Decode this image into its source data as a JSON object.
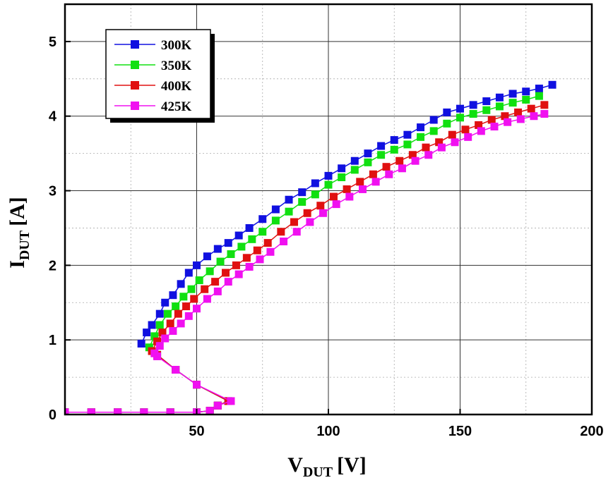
{
  "chart_data": {
    "type": "scatter",
    "xlabel": {
      "main": "V",
      "sub": "DUT",
      "unit": "[V]"
    },
    "ylabel": {
      "main": "I",
      "sub": "DUT",
      "unit": "[A]"
    },
    "xlim": [
      0,
      200
    ],
    "ylim": [
      0,
      5.5
    ],
    "xticks": [
      "50",
      "100",
      "150",
      "200"
    ],
    "xtick_values": [
      50,
      100,
      150,
      200
    ],
    "yticks": [
      "0",
      "1",
      "2",
      "3",
      "4",
      "5"
    ],
    "ytick_values": [
      0,
      1,
      2,
      3,
      4,
      5
    ],
    "grid": true,
    "legend_position": "top-left",
    "series": [
      {
        "name": "300K",
        "color": "#1010e0",
        "points": [
          [
            0,
            0.03
          ],
          [
            10,
            0.03
          ],
          [
            20,
            0.03
          ],
          [
            30,
            0.03
          ],
          [
            40,
            0.03
          ],
          [
            50,
            0.03
          ],
          [
            55,
            0.05
          ],
          [
            58,
            0.12
          ],
          [
            62,
            0.18
          ],
          [
            50,
            0.4
          ],
          [
            42,
            0.6
          ],
          [
            35,
            0.8
          ],
          [
            29,
            0.95
          ],
          [
            31,
            1.1
          ],
          [
            33,
            1.2
          ],
          [
            36,
            1.35
          ],
          [
            38,
            1.5
          ],
          [
            41,
            1.6
          ],
          [
            44,
            1.75
          ],
          [
            47,
            1.9
          ],
          [
            50,
            2.0
          ],
          [
            54,
            2.12
          ],
          [
            58,
            2.22
          ],
          [
            62,
            2.3
          ],
          [
            66,
            2.4
          ],
          [
            70,
            2.5
          ],
          [
            75,
            2.62
          ],
          [
            80,
            2.75
          ],
          [
            85,
            2.88
          ],
          [
            90,
            2.98
          ],
          [
            95,
            3.1
          ],
          [
            100,
            3.2
          ],
          [
            105,
            3.3
          ],
          [
            110,
            3.4
          ],
          [
            115,
            3.5
          ],
          [
            120,
            3.6
          ],
          [
            125,
            3.68
          ],
          [
            130,
            3.75
          ],
          [
            135,
            3.85
          ],
          [
            140,
            3.95
          ],
          [
            145,
            4.05
          ],
          [
            150,
            4.1
          ],
          [
            155,
            4.15
          ],
          [
            160,
            4.2
          ],
          [
            165,
            4.25
          ],
          [
            170,
            4.3
          ],
          [
            175,
            4.33
          ],
          [
            180,
            4.37
          ],
          [
            185,
            4.42
          ]
        ]
      },
      {
        "name": "350K",
        "color": "#10e010",
        "points": [
          [
            0,
            0.03
          ],
          [
            10,
            0.03
          ],
          [
            20,
            0.03
          ],
          [
            30,
            0.03
          ],
          [
            40,
            0.03
          ],
          [
            50,
            0.03
          ],
          [
            55,
            0.05
          ],
          [
            58,
            0.12
          ],
          [
            62,
            0.18
          ],
          [
            50,
            0.4
          ],
          [
            42,
            0.6
          ],
          [
            35,
            0.8
          ],
          [
            32,
            0.9
          ],
          [
            34,
            1.05
          ],
          [
            36,
            1.2
          ],
          [
            39,
            1.35
          ],
          [
            42,
            1.45
          ],
          [
            45,
            1.58
          ],
          [
            48,
            1.68
          ],
          [
            51,
            1.8
          ],
          [
            55,
            1.92
          ],
          [
            59,
            2.05
          ],
          [
            63,
            2.15
          ],
          [
            67,
            2.25
          ],
          [
            71,
            2.35
          ],
          [
            75,
            2.45
          ],
          [
            80,
            2.6
          ],
          [
            85,
            2.72
          ],
          [
            90,
            2.85
          ],
          [
            95,
            2.95
          ],
          [
            100,
            3.08
          ],
          [
            105,
            3.18
          ],
          [
            110,
            3.28
          ],
          [
            115,
            3.38
          ],
          [
            120,
            3.48
          ],
          [
            125,
            3.55
          ],
          [
            130,
            3.62
          ],
          [
            135,
            3.72
          ],
          [
            140,
            3.8
          ],
          [
            145,
            3.9
          ],
          [
            150,
            3.98
          ],
          [
            155,
            4.03
          ],
          [
            160,
            4.08
          ],
          [
            165,
            4.13
          ],
          [
            170,
            4.18
          ],
          [
            175,
            4.22
          ],
          [
            180,
            4.27
          ]
        ]
      },
      {
        "name": "400K",
        "color": "#e01010",
        "points": [
          [
            0,
            0.03
          ],
          [
            10,
            0.03
          ],
          [
            20,
            0.03
          ],
          [
            30,
            0.03
          ],
          [
            40,
            0.03
          ],
          [
            50,
            0.03
          ],
          [
            55,
            0.05
          ],
          [
            58,
            0.12
          ],
          [
            62,
            0.18
          ],
          [
            50,
            0.4
          ],
          [
            42,
            0.6
          ],
          [
            35,
            0.8
          ],
          [
            33,
            0.85
          ],
          [
            35,
            0.98
          ],
          [
            37,
            1.1
          ],
          [
            40,
            1.22
          ],
          [
            43,
            1.35
          ],
          [
            46,
            1.45
          ],
          [
            49,
            1.55
          ],
          [
            53,
            1.68
          ],
          [
            57,
            1.78
          ],
          [
            61,
            1.9
          ],
          [
            65,
            2.0
          ],
          [
            69,
            2.1
          ],
          [
            73,
            2.2
          ],
          [
            77,
            2.3
          ],
          [
            82,
            2.45
          ],
          [
            87,
            2.58
          ],
          [
            92,
            2.7
          ],
          [
            97,
            2.8
          ],
          [
            102,
            2.92
          ],
          [
            107,
            3.02
          ],
          [
            112,
            3.12
          ],
          [
            117,
            3.22
          ],
          [
            122,
            3.32
          ],
          [
            127,
            3.4
          ],
          [
            132,
            3.48
          ],
          [
            137,
            3.58
          ],
          [
            142,
            3.65
          ],
          [
            147,
            3.75
          ],
          [
            152,
            3.82
          ],
          [
            157,
            3.88
          ],
          [
            162,
            3.95
          ],
          [
            167,
            4.0
          ],
          [
            172,
            4.05
          ],
          [
            177,
            4.1
          ],
          [
            182,
            4.15
          ]
        ]
      },
      {
        "name": "425K",
        "color": "#f010f0",
        "points": [
          [
            0,
            0.03
          ],
          [
            10,
            0.03
          ],
          [
            20,
            0.03
          ],
          [
            30,
            0.03
          ],
          [
            40,
            0.03
          ],
          [
            50,
            0.03
          ],
          [
            55,
            0.05
          ],
          [
            58,
            0.12
          ],
          [
            63,
            0.18
          ],
          [
            50,
            0.4
          ],
          [
            42,
            0.6
          ],
          [
            35,
            0.78
          ],
          [
            34,
            0.82
          ],
          [
            36,
            0.92
          ],
          [
            38,
            1.02
          ],
          [
            41,
            1.12
          ],
          [
            44,
            1.22
          ],
          [
            47,
            1.32
          ],
          [
            50,
            1.42
          ],
          [
            54,
            1.55
          ],
          [
            58,
            1.65
          ],
          [
            62,
            1.78
          ],
          [
            66,
            1.88
          ],
          [
            70,
            1.98
          ],
          [
            74,
            2.08
          ],
          [
            78,
            2.18
          ],
          [
            83,
            2.32
          ],
          [
            88,
            2.45
          ],
          [
            93,
            2.58
          ],
          [
            98,
            2.7
          ],
          [
            103,
            2.82
          ],
          [
            108,
            2.92
          ],
          [
            113,
            3.02
          ],
          [
            118,
            3.12
          ],
          [
            123,
            3.22
          ],
          [
            128,
            3.3
          ],
          [
            133,
            3.4
          ],
          [
            138,
            3.48
          ],
          [
            143,
            3.58
          ],
          [
            148,
            3.65
          ],
          [
            153,
            3.72
          ],
          [
            158,
            3.8
          ],
          [
            163,
            3.86
          ],
          [
            168,
            3.92
          ],
          [
            173,
            3.96
          ],
          [
            178,
            4.0
          ],
          [
            182,
            4.03
          ]
        ]
      }
    ]
  }
}
